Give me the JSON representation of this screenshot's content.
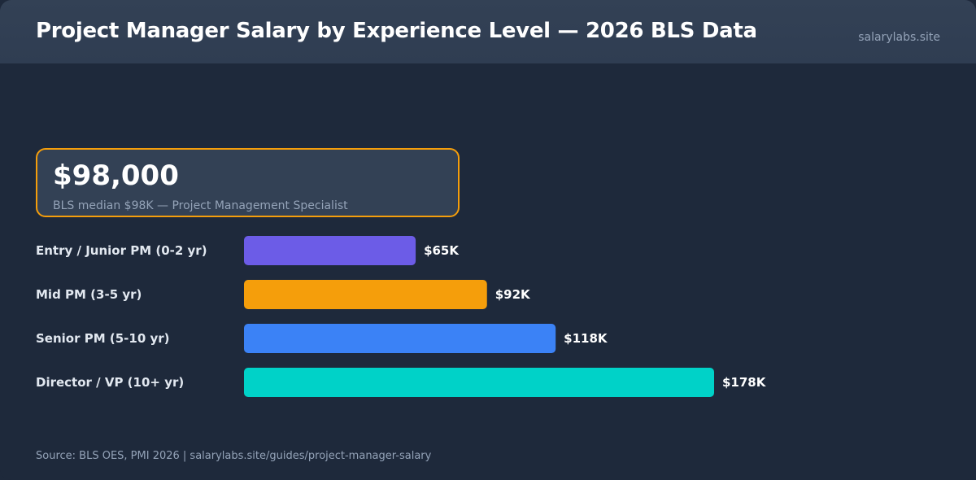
{
  "header": {
    "title": "Project Manager Salary by Experience Level — 2026 BLS Data",
    "site": "salarylabs.site"
  },
  "median": {
    "value": "$98,000",
    "caption": "BLS median $98K — Project Management Specialist"
  },
  "footer": {
    "source": "Source: BLS OES, PMI 2026 | salarylabs.site/guides/project-manager-salary"
  },
  "chart_data": {
    "type": "bar",
    "orientation": "horizontal",
    "title": "Project Manager Salary by Experience Level — 2026 BLS Data",
    "categories": [
      "Entry / Junior PM (0-2 yr)",
      "Mid PM (3-5 yr)",
      "Senior PM (5-10 yr)",
      "Director / VP (10+ yr)"
    ],
    "values": [
      65,
      92,
      118,
      178
    ],
    "value_labels": [
      "$65K",
      "$92K",
      "$118K",
      "$178K"
    ],
    "units": "thousands USD",
    "colors": [
      "#6c5ce7",
      "#f59e0b",
      "#3b82f6",
      "#00d2c8"
    ],
    "xlim": [
      0,
      178
    ],
    "grid": false,
    "legend": "none"
  }
}
